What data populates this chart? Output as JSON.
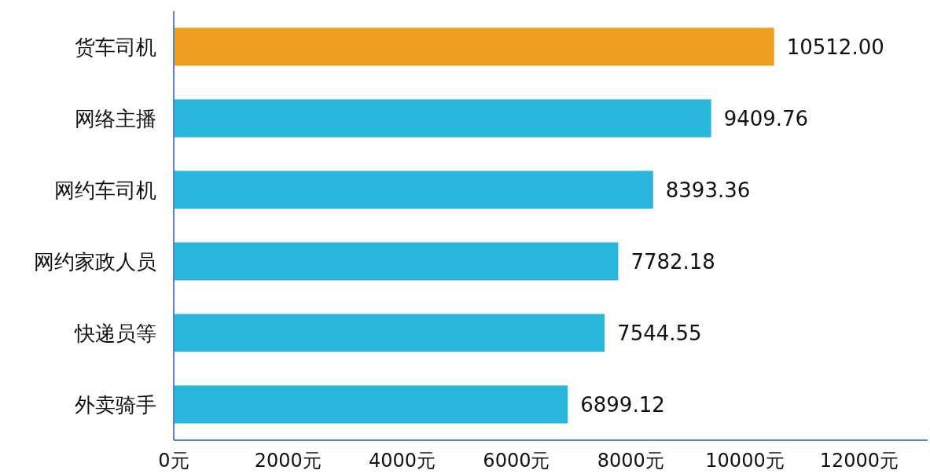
{
  "chart_data": {
    "type": "bar",
    "orientation": "horizontal",
    "categories": [
      "货车司机",
      "网络主播",
      "网约车司机",
      "网约家政人员",
      "快递员等",
      "外卖骑手"
    ],
    "values": [
      10512.0,
      9409.76,
      8393.36,
      7782.18,
      7544.55,
      6899.12
    ],
    "value_labels": [
      "10512.00",
      "9409.76",
      "8393.36",
      "7782.18",
      "7544.55",
      "6899.12"
    ],
    "colors": [
      "#f0a020",
      "#29b6dc",
      "#29b6dc",
      "#29b6dc",
      "#29b6dc",
      "#29b6dc"
    ],
    "xlim": [
      0,
      13200
    ],
    "xticks": [
      {
        "value": 0,
        "label": "0元"
      },
      {
        "value": 2000,
        "label": "2000元"
      },
      {
        "value": 4000,
        "label": "4000元"
      },
      {
        "value": 6000,
        "label": "6000元"
      },
      {
        "value": 8000,
        "label": "8000元"
      },
      {
        "value": 10000,
        "label": "10000元"
      },
      {
        "value": 12000,
        "label": "12000元"
      }
    ],
    "grid": false
  }
}
